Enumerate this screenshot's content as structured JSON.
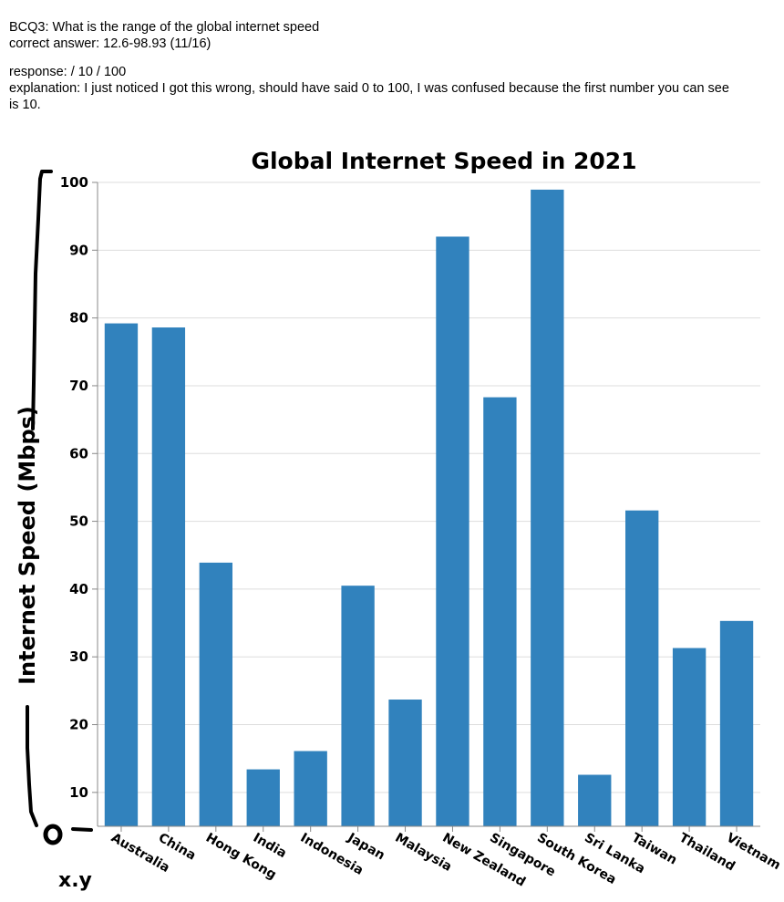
{
  "notes": {
    "question": "BCQ3: What is the range of the global internet speed",
    "correct_answer": "correct answer: 12.6-98.93 (11/16)",
    "response": "response:  / 10 / 100",
    "explanation": "explanation: I just noticed I got this wrong, should have said 0 to 100, I was confused because the first number you can see is 10."
  },
  "handwriting": {
    "annotation": "x.y"
  },
  "colors": {
    "bar": "#3182bd",
    "grid": "#dddddd",
    "axis": "#888888"
  },
  "chart_data": {
    "type": "bar",
    "title": "Global Internet Speed in 2021",
    "xlabel": "",
    "ylabel": "Internet Speed (Mbps)",
    "categories": [
      "Australia",
      "China",
      "Hong Kong",
      "India",
      "Indonesia",
      "Japan",
      "Malaysia",
      "New Zealand",
      "Singapore",
      "South Korea",
      "Sri Lanka",
      "Taiwan",
      "Thailand",
      "Vietnam"
    ],
    "values": [
      79.2,
      78.6,
      43.9,
      13.4,
      16.1,
      40.5,
      23.7,
      92.0,
      68.3,
      98.93,
      12.6,
      51.6,
      31.3,
      35.3
    ],
    "ylim": [
      5,
      100
    ],
    "yticks": [
      10,
      20,
      30,
      40,
      50,
      60,
      70,
      80,
      90,
      100
    ],
    "grid": true,
    "legend": "none"
  }
}
